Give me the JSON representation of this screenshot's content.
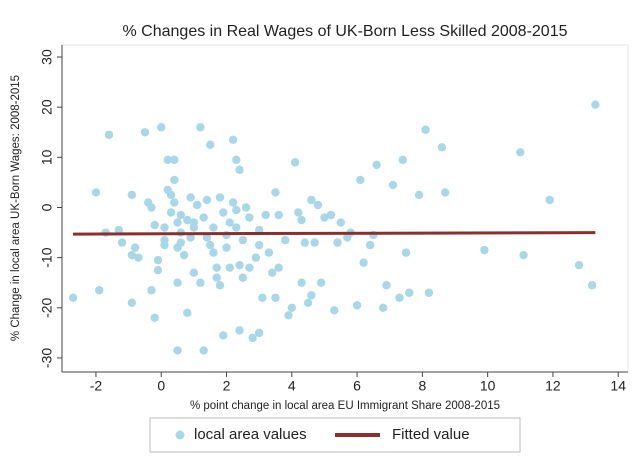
{
  "chart_data": {
    "type": "scatter",
    "title": "% Changes in Real Wages of UK-Born Less Skilled 2008-2015",
    "x_label": "% point change in local area EU Immigrant Share 2008-2015",
    "y_label": "% Change in local area UK-Born Wages: 2008-2015",
    "xlim": [
      -3.04,
      14.3
    ],
    "ylim": [
      -32.8,
      32.4
    ],
    "xticks": [
      -2,
      0,
      2,
      4,
      6,
      8,
      10,
      12,
      14
    ],
    "yticks": [
      -30,
      -20,
      -10,
      0,
      10,
      20,
      30
    ],
    "grid": false,
    "legend": "bottom",
    "series": [
      {
        "name": "local area values",
        "type": "scatter",
        "color": "#a8d8e8",
        "x": [
          -2.7,
          -2,
          -1.9,
          -1.6,
          -1.7,
          -1.3,
          -1.2,
          -0.9,
          -0.9,
          -0.9,
          -0.8,
          -0.7,
          -0.5,
          -0.4,
          -0.3,
          -0.2,
          -0.3,
          -0.2,
          -0.1,
          -0.1,
          0,
          0.1,
          0.1,
          0.1,
          0.2,
          0.2,
          0.3,
          0.3,
          0.4,
          0.4,
          0.4,
          0.5,
          0.5,
          0.5,
          0.5,
          0.6,
          0.6,
          0.6,
          0.7,
          0.8,
          0.8,
          0.9,
          0.9,
          1,
          1,
          1,
          1.1,
          1.2,
          1.2,
          1.3,
          1.3,
          1.4,
          1.4,
          1.5,
          1.5,
          1.6,
          1.6,
          1.7,
          1.7,
          1.8,
          1.8,
          1.9,
          1.9,
          2,
          2,
          2.1,
          2.1,
          2.2,
          2.2,
          2.3,
          2.3,
          2.3,
          2.4,
          2.4,
          2.4,
          2.5,
          2.5,
          2.6,
          2.7,
          2.7,
          2.8,
          2.9,
          3,
          3,
          3,
          3.1,
          3.2,
          3.3,
          3.4,
          3.5,
          3.5,
          3.6,
          3.6,
          3.8,
          3.9,
          4,
          4.1,
          4.2,
          4.3,
          4.3,
          4.4,
          4.5,
          4.6,
          4.6,
          4.7,
          4.8,
          4.9,
          5,
          5.2,
          5.3,
          5.4,
          5.5,
          5.7,
          5.8,
          6,
          6.1,
          6.2,
          6.4,
          6.5,
          6.6,
          6.8,
          6.9,
          7.1,
          7.3,
          7.4,
          7.5,
          7.6,
          7.9,
          8.1,
          8.2,
          8.6,
          8.7,
          9.9,
          11,
          11.1,
          11.9,
          12.8,
          13.2,
          13.3
        ],
        "y": [
          -18,
          3,
          -16.5,
          14.5,
          -5,
          -4.5,
          -7,
          -19,
          2.5,
          -9.5,
          -8,
          -10,
          15,
          1,
          0,
          -3.5,
          -16.5,
          -22,
          -12.5,
          -10.5,
          16,
          -7.5,
          -4,
          -6.5,
          9.5,
          3.5,
          2.5,
          -1,
          9.5,
          1,
          5.5,
          -3,
          -8,
          -15,
          -28.5,
          -1.5,
          -5,
          -7,
          -9.5,
          -21,
          -2.5,
          -6,
          2,
          -3,
          -4,
          -13,
          0.5,
          16,
          -15,
          -28.5,
          -2,
          1.5,
          -6,
          12.5,
          -7.5,
          -4,
          -9,
          -12,
          -14,
          -15.5,
          2,
          -1,
          -25.5,
          -5.5,
          -8,
          -12,
          -3,
          13.5,
          1,
          -0.5,
          -4,
          9.5,
          7.5,
          -11.5,
          -24.5,
          -6.5,
          -14,
          0,
          -2,
          -12,
          -26,
          -10,
          -25,
          -4.5,
          -7.5,
          -18,
          -1.5,
          -9,
          -13,
          3,
          -18,
          -12,
          -1.5,
          -6.5,
          -21.5,
          -20,
          9,
          -1,
          -2.5,
          -15,
          -7,
          -19,
          1.5,
          -17.5,
          -7,
          0.5,
          -15,
          -2,
          -1.5,
          -20.5,
          -7,
          -3,
          -6,
          -5,
          -19.5,
          5.5,
          -11,
          -7.5,
          -5.5,
          8.5,
          -20,
          -15.5,
          4.5,
          -18,
          9.5,
          -9,
          -17,
          2.5,
          15.5,
          -17,
          12,
          3,
          -8.5,
          11,
          -9.5,
          1.5,
          -11.5,
          -15.5,
          20.5
        ]
      },
      {
        "name": "Fitted value",
        "type": "line",
        "color": "#8b2e2e",
        "x": [
          -2.7,
          13.3
        ],
        "y": [
          -5.3,
          -5.0
        ]
      }
    ]
  }
}
